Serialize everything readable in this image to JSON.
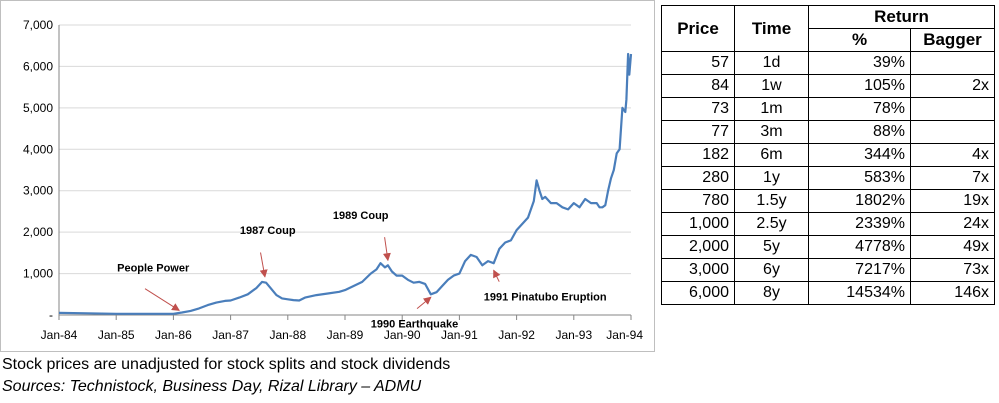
{
  "chart_data": {
    "type": "line",
    "ylim": [
      0,
      7000
    ],
    "yticks": [
      0,
      1000,
      2000,
      3000,
      4000,
      5000,
      6000,
      7000
    ],
    "ytick_labels": [
      "-",
      "1,000",
      "2,000",
      "3,000",
      "4,000",
      "5,000",
      "6,000",
      "7,000"
    ],
    "xticks": [
      1984,
      1985,
      1986,
      1987,
      1988,
      1989,
      1990,
      1991,
      1992,
      1993,
      1994
    ],
    "xtick_labels": [
      "Jan-84",
      "Jan-85",
      "Jan-86",
      "Jan-87",
      "Jan-88",
      "Jan-89",
      "Jan-90",
      "Jan-91",
      "Jan-92",
      "Jan-93",
      "Jan-94"
    ],
    "xlim": [
      1984.0,
      1994.0
    ],
    "line_color": "#4a7ebb",
    "grid": "horizontal",
    "series": [
      {
        "x": [
          1984.0,
          1984.5,
          1985.0,
          1985.5,
          1986.0,
          1986.15,
          1986.3,
          1986.45,
          1986.6,
          1986.75,
          1986.9,
          1987.0,
          1987.15,
          1987.3,
          1987.45,
          1987.55,
          1987.62,
          1987.7,
          1987.8,
          1987.9,
          1988.0,
          1988.1,
          1988.2,
          1988.3,
          1988.5,
          1988.7,
          1988.9,
          1989.0,
          1989.15,
          1989.3,
          1989.45,
          1989.55,
          1989.62,
          1989.7,
          1989.75,
          1989.82,
          1989.9,
          1990.0,
          1990.1,
          1990.2,
          1990.3,
          1990.4,
          1990.5,
          1990.6,
          1990.7,
          1990.8,
          1990.9,
          1991.0,
          1991.1,
          1991.2,
          1991.3,
          1991.4,
          1991.5,
          1991.6,
          1991.7,
          1991.8,
          1991.9,
          1992.0,
          1992.1,
          1992.2,
          1992.3,
          1992.35,
          1992.4,
          1992.45,
          1992.5,
          1992.6,
          1992.7,
          1992.8,
          1992.9,
          1993.0,
          1993.1,
          1993.2,
          1993.3,
          1993.4,
          1993.45,
          1993.5,
          1993.55,
          1993.6,
          1993.65,
          1993.7,
          1993.75,
          1993.8,
          1993.85,
          1993.9,
          1993.92,
          1993.95,
          1993.97,
          1994.0
        ],
        "y": [
          50,
          40,
          30,
          30,
          30,
          60,
          100,
          160,
          240,
          300,
          340,
          350,
          420,
          500,
          650,
          800,
          780,
          650,
          480,
          400,
          380,
          360,
          350,
          420,
          480,
          520,
          560,
          600,
          700,
          800,
          1000,
          1100,
          1250,
          1150,
          1200,
          1050,
          950,
          950,
          850,
          780,
          800,
          750,
          500,
          550,
          700,
          850,
          950,
          1000,
          1300,
          1450,
          1400,
          1200,
          1300,
          1250,
          1600,
          1750,
          1800,
          2050,
          2200,
          2350,
          2750,
          3250,
          3000,
          2800,
          2850,
          2700,
          2700,
          2600,
          2550,
          2700,
          2600,
          2800,
          2700,
          2700,
          2600,
          2600,
          2650,
          3000,
          3300,
          3500,
          3900,
          4000,
          5000,
          4900,
          5200,
          6300,
          5800,
          6300
        ]
      }
    ],
    "annotations": [
      {
        "text": "People Power",
        "x": 1986.1,
        "y": 40
      },
      {
        "text": "1987 Coup",
        "x": 1987.6,
        "y": 850
      },
      {
        "text": "1989 Coup",
        "x": 1989.75,
        "y": 1250
      },
      {
        "text": "1990 Earthquake",
        "x": 1990.5,
        "y": 500
      },
      {
        "text": "1991 Pinatubo Eruption",
        "x": 1991.6,
        "y": 1150
      }
    ]
  },
  "table": {
    "headers": {
      "price": "Price",
      "time": "Time",
      "return": "Return",
      "pct": "%",
      "bagger": "Bagger"
    },
    "rows": [
      {
        "price": "57",
        "time": "1d",
        "pct": "39%",
        "bagger": ""
      },
      {
        "price": "84",
        "time": "1w",
        "pct": "105%",
        "bagger": "2x"
      },
      {
        "price": "73",
        "time": "1m",
        "pct": "78%",
        "bagger": ""
      },
      {
        "price": "77",
        "time": "3m",
        "pct": "88%",
        "bagger": ""
      },
      {
        "price": "182",
        "time": "6m",
        "pct": "344%",
        "bagger": "4x"
      },
      {
        "price": "280",
        "time": "1y",
        "pct": "583%",
        "bagger": "7x"
      },
      {
        "price": "780",
        "time": "1.5y",
        "pct": "1802%",
        "bagger": "19x"
      },
      {
        "price": "1,000",
        "time": "2.5y",
        "pct": "2339%",
        "bagger": "24x"
      },
      {
        "price": "2,000",
        "time": "5y",
        "pct": "4778%",
        "bagger": "49x"
      },
      {
        "price": "3,000",
        "time": "6y",
        "pct": "7217%",
        "bagger": "73x"
      },
      {
        "price": "6,000",
        "time": "8y",
        "pct": "14534%",
        "bagger": "146x"
      }
    ]
  },
  "footnotes": {
    "note": "Stock prices are unadjusted for stock splits and stock dividends",
    "sources": "Sources: Technistock, Business Day, Rizal Library – ADMU"
  }
}
